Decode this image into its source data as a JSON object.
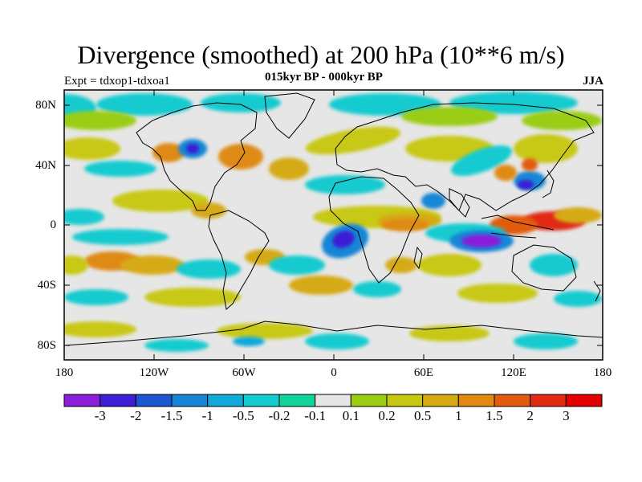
{
  "title": "Divergence (smoothed) at 200 hPa (10**6 m/s)",
  "experiment": "Expt = tdxop1-tdxoa1",
  "period": "015kyr BP - 000kyr BP",
  "season": "JJA",
  "lat_ticks": [
    "80N",
    "40N",
    "0",
    "40S",
    "80S"
  ],
  "lon_ticks": [
    "180",
    "120W",
    "60W",
    "0",
    "60E",
    "120E",
    "180"
  ],
  "colorbar": {
    "colors": [
      "#8a1ed9",
      "#3c1fd6",
      "#1c56d0",
      "#1886d6",
      "#10a9d8",
      "#14cbd0",
      "#12d49a",
      "#e6e6e6",
      "#9acd14",
      "#c8c814",
      "#d6aa12",
      "#e08a12",
      "#e25c10",
      "#e02a12",
      "#e20000"
    ],
    "labels": [
      "-3",
      "-2",
      "-1.5",
      "-1",
      "-0.5",
      "-0.2",
      "-0.1",
      "0.1",
      "0.2",
      "0.5",
      "1",
      "1.5",
      "2",
      "3"
    ]
  },
  "field_colors": {
    "neutral": "#e6e6e6",
    "cyan": "#14cbd0",
    "teal": "#10a9d8",
    "blue": "#1886d6",
    "deepblue": "#3c1fd6",
    "purple": "#8a1ed9",
    "green": "#9acd14",
    "yellow": "#c8c814",
    "ochre": "#d6aa12",
    "orange": "#e08a12",
    "redorange": "#e25c10",
    "red": "#e02a12"
  }
}
